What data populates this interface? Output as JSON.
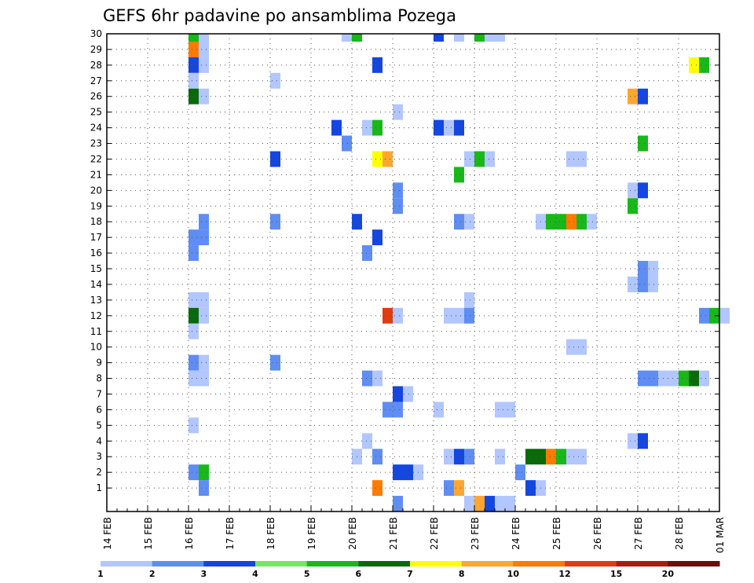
{
  "chart_data": {
    "type": "heatmap",
    "title": "GEFS 6hr padavine po ansamblima Pozega",
    "xlabel": "",
    "ylabel": "",
    "x_tick_labels": [
      "14 FEB",
      "15 FEB",
      "16 FEB",
      "17 FEB",
      "18 FEB",
      "19 FEB",
      "20 FEB",
      "21 FEB",
      "22 FEB",
      "23 FEB",
      "24 FEB",
      "25 FEB",
      "26 FEB",
      "27 FEB",
      "28 FEB",
      "01 MAR"
    ],
    "y_tick_labels": [
      "1",
      "2",
      "3",
      "4",
      "5",
      "6",
      "7",
      "8",
      "9",
      "10",
      "11",
      "12",
      "13",
      "14",
      "15",
      "16",
      "17",
      "18",
      "19",
      "20",
      "21",
      "22",
      "23",
      "24",
      "25",
      "26",
      "27",
      "28",
      "29",
      "30"
    ],
    "time_step_hours": 6,
    "ylim": [
      0,
      30
    ],
    "grid": true,
    "legend_position": "bottom",
    "legend": {
      "levels": [
        "1",
        "2",
        "3",
        "4",
        "5",
        "6",
        "7",
        "8",
        "10",
        "12",
        "15",
        "20"
      ],
      "colors": [
        "#b2c6ff",
        "#5f8df2",
        "#1446e0",
        "#73e860",
        "#18b818",
        "#0a6a0a",
        "#ffff00",
        "#ffa630",
        "#ff7a00",
        "#e03c10",
        "#a81c10",
        "#6e0a0a"
      ]
    },
    "cells": [
      {
        "member": 30,
        "step": 8,
        "level": 5
      },
      {
        "member": 30,
        "step": 9,
        "level": 1
      },
      {
        "member": 30,
        "step": 23,
        "level": 1
      },
      {
        "member": 30,
        "step": 24,
        "level": 5
      },
      {
        "member": 30,
        "step": 32,
        "level": 3
      },
      {
        "member": 30,
        "step": 34,
        "level": 1
      },
      {
        "member": 30,
        "step": 36,
        "level": 5
      },
      {
        "member": 30,
        "step": 37,
        "level": 1
      },
      {
        "member": 30,
        "step": 38,
        "level": 1
      },
      {
        "member": 29,
        "step": 8,
        "level": 10
      },
      {
        "member": 29,
        "step": 9,
        "level": 1
      },
      {
        "member": 28,
        "step": 8,
        "level": 3
      },
      {
        "member": 28,
        "step": 9,
        "level": 1
      },
      {
        "member": 28,
        "step": 26,
        "level": 3
      },
      {
        "member": 28,
        "step": 57,
        "level": 7
      },
      {
        "member": 28,
        "step": 58,
        "level": 5
      },
      {
        "member": 27,
        "step": 8,
        "level": 1
      },
      {
        "member": 27,
        "step": 16,
        "level": 1
      },
      {
        "member": 26,
        "step": 8,
        "level": 6
      },
      {
        "member": 26,
        "step": 9,
        "level": 1
      },
      {
        "member": 26,
        "step": 51,
        "level": 8
      },
      {
        "member": 26,
        "step": 52,
        "level": 3
      },
      {
        "member": 25,
        "step": 28,
        "level": 1
      },
      {
        "member": 24,
        "step": 22,
        "level": 3
      },
      {
        "member": 24,
        "step": 25,
        "level": 1
      },
      {
        "member": 24,
        "step": 26,
        "level": 5
      },
      {
        "member": 24,
        "step": 32,
        "level": 3
      },
      {
        "member": 24,
        "step": 33,
        "level": 1
      },
      {
        "member": 24,
        "step": 34,
        "level": 3
      },
      {
        "member": 23,
        "step": 23,
        "level": 2
      },
      {
        "member": 23,
        "step": 52,
        "level": 5
      },
      {
        "member": 22,
        "step": 16,
        "level": 3
      },
      {
        "member": 22,
        "step": 26,
        "level": 7
      },
      {
        "member": 22,
        "step": 27,
        "level": 8
      },
      {
        "member": 22,
        "step": 35,
        "level": 1
      },
      {
        "member": 22,
        "step": 36,
        "level": 5
      },
      {
        "member": 22,
        "step": 37,
        "level": 1
      },
      {
        "member": 22,
        "step": 45,
        "level": 1
      },
      {
        "member": 22,
        "step": 46,
        "level": 1
      },
      {
        "member": 21,
        "step": 34,
        "level": 5
      },
      {
        "member": 20,
        "step": 28,
        "level": 2
      },
      {
        "member": 20,
        "step": 51,
        "level": 1
      },
      {
        "member": 20,
        "step": 52,
        "level": 3
      },
      {
        "member": 19,
        "step": 28,
        "level": 2
      },
      {
        "member": 19,
        "step": 51,
        "level": 5
      },
      {
        "member": 18,
        "step": 9,
        "level": 2
      },
      {
        "member": 18,
        "step": 16,
        "level": 2
      },
      {
        "member": 18,
        "step": 24,
        "level": 3
      },
      {
        "member": 18,
        "step": 34,
        "level": 2
      },
      {
        "member": 18,
        "step": 35,
        "level": 1
      },
      {
        "member": 18,
        "step": 42,
        "level": 1
      },
      {
        "member": 18,
        "step": 43,
        "level": 5
      },
      {
        "member": 18,
        "step": 44,
        "level": 5
      },
      {
        "member": 18,
        "step": 45,
        "level": 10
      },
      {
        "member": 18,
        "step": 46,
        "level": 5
      },
      {
        "member": 18,
        "step": 47,
        "level": 1
      },
      {
        "member": 17,
        "step": 8,
        "level": 2
      },
      {
        "member": 17,
        "step": 9,
        "level": 2
      },
      {
        "member": 17,
        "step": 26,
        "level": 3
      },
      {
        "member": 16,
        "step": 8,
        "level": 2
      },
      {
        "member": 16,
        "step": 25,
        "level": 2
      },
      {
        "member": 15,
        "step": 52,
        "level": 2
      },
      {
        "member": 15,
        "step": 53,
        "level": 1
      },
      {
        "member": 14,
        "step": 51,
        "level": 1
      },
      {
        "member": 14,
        "step": 52,
        "level": 2
      },
      {
        "member": 14,
        "step": 53,
        "level": 1
      },
      {
        "member": 13,
        "step": 8,
        "level": 1
      },
      {
        "member": 13,
        "step": 9,
        "level": 1
      },
      {
        "member": 13,
        "step": 35,
        "level": 1
      },
      {
        "member": 12,
        "step": 8,
        "level": 6
      },
      {
        "member": 12,
        "step": 9,
        "level": 1
      },
      {
        "member": 12,
        "step": 27,
        "level": 12
      },
      {
        "member": 12,
        "step": 28,
        "level": 1
      },
      {
        "member": 12,
        "step": 33,
        "level": 1
      },
      {
        "member": 12,
        "step": 34,
        "level": 1
      },
      {
        "member": 12,
        "step": 35,
        "level": 2
      },
      {
        "member": 12,
        "step": 58,
        "level": 2
      },
      {
        "member": 12,
        "step": 59,
        "level": 5
      },
      {
        "member": 12,
        "step": 60,
        "level": 1
      },
      {
        "member": 11,
        "step": 8,
        "level": 1
      },
      {
        "member": 10,
        "step": 45,
        "level": 1
      },
      {
        "member": 10,
        "step": 46,
        "level": 1
      },
      {
        "member": 9,
        "step": 8,
        "level": 2
      },
      {
        "member": 9,
        "step": 9,
        "level": 1
      },
      {
        "member": 9,
        "step": 16,
        "level": 2
      },
      {
        "member": 8,
        "step": 8,
        "level": 1
      },
      {
        "member": 8,
        "step": 9,
        "level": 1
      },
      {
        "member": 8,
        "step": 25,
        "level": 2
      },
      {
        "member": 8,
        "step": 26,
        "level": 1
      },
      {
        "member": 8,
        "step": 52,
        "level": 2
      },
      {
        "member": 8,
        "step": 53,
        "level": 2
      },
      {
        "member": 8,
        "step": 54,
        "level": 1
      },
      {
        "member": 8,
        "step": 55,
        "level": 1
      },
      {
        "member": 8,
        "step": 56,
        "level": 5
      },
      {
        "member": 8,
        "step": 57,
        "level": 6
      },
      {
        "member": 8,
        "step": 58,
        "level": 1
      },
      {
        "member": 7,
        "step": 28,
        "level": 3
      },
      {
        "member": 7,
        "step": 29,
        "level": 1
      },
      {
        "member": 6,
        "step": 27,
        "level": 2
      },
      {
        "member": 6,
        "step": 28,
        "level": 2
      },
      {
        "member": 6,
        "step": 32,
        "level": 1
      },
      {
        "member": 6,
        "step": 38,
        "level": 1
      },
      {
        "member": 6,
        "step": 39,
        "level": 1
      },
      {
        "member": 5,
        "step": 8,
        "level": 1
      },
      {
        "member": 4,
        "step": 25,
        "level": 1
      },
      {
        "member": 4,
        "step": 51,
        "level": 1
      },
      {
        "member": 4,
        "step": 52,
        "level": 3
      },
      {
        "member": 3,
        "step": 24,
        "level": 1
      },
      {
        "member": 3,
        "step": 26,
        "level": 2
      },
      {
        "member": 3,
        "step": 33,
        "level": 1
      },
      {
        "member": 3,
        "step": 34,
        "level": 3
      },
      {
        "member": 3,
        "step": 35,
        "level": 2
      },
      {
        "member": 3,
        "step": 38,
        "level": 1
      },
      {
        "member": 3,
        "step": 41,
        "level": 6
      },
      {
        "member": 3,
        "step": 42,
        "level": 6
      },
      {
        "member": 3,
        "step": 43,
        "level": 10
      },
      {
        "member": 3,
        "step": 44,
        "level": 5
      },
      {
        "member": 3,
        "step": 45,
        "level": 1
      },
      {
        "member": 3,
        "step": 46,
        "level": 1
      },
      {
        "member": 2,
        "step": 8,
        "level": 2
      },
      {
        "member": 2,
        "step": 9,
        "level": 5
      },
      {
        "member": 2,
        "step": 28,
        "level": 3
      },
      {
        "member": 2,
        "step": 29,
        "level": 3
      },
      {
        "member": 2,
        "step": 30,
        "level": 1
      },
      {
        "member": 2,
        "step": 40,
        "level": 2
      },
      {
        "member": 1,
        "step": 9,
        "level": 2
      },
      {
        "member": 1,
        "step": 26,
        "level": 10
      },
      {
        "member": 1,
        "step": 33,
        "level": 2
      },
      {
        "member": 1,
        "step": 34,
        "level": 8
      },
      {
        "member": 1,
        "step": 41,
        "level": 3
      },
      {
        "member": 1,
        "step": 42,
        "level": 1
      },
      {
        "member": 0,
        "step": 28,
        "level": 2
      },
      {
        "member": 0,
        "step": 35,
        "level": 1
      },
      {
        "member": 0,
        "step": 36,
        "level": 8
      },
      {
        "member": 0,
        "step": 37,
        "level": 3
      },
      {
        "member": 0,
        "step": 38,
        "level": 1
      },
      {
        "member": 0,
        "step": 39,
        "level": 1
      }
    ]
  }
}
